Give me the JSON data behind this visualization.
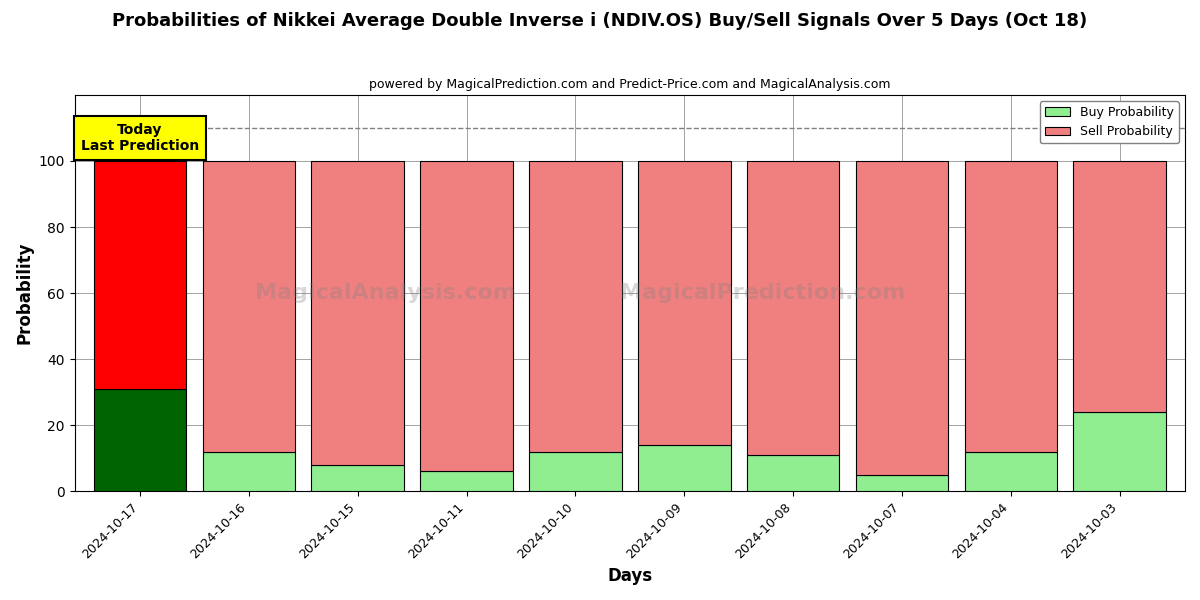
{
  "title": "Probabilities of Nikkei Average Double Inverse i (NDIV.OS) Buy/Sell Signals Over 5 Days (Oct 18)",
  "subtitle": "powered by MagicalPrediction.com and Predict-Price.com and MagicalAnalysis.com",
  "xlabel": "Days",
  "ylabel": "Probability",
  "dates": [
    "2024-10-17",
    "2024-10-16",
    "2024-10-15",
    "2024-10-11",
    "2024-10-10",
    "2024-10-09",
    "2024-10-08",
    "2024-10-07",
    "2024-10-04",
    "2024-10-03"
  ],
  "buy_values": [
    31,
    12,
    8,
    6,
    12,
    14,
    11,
    5,
    12,
    24
  ],
  "sell_values": [
    69,
    88,
    92,
    94,
    88,
    86,
    89,
    95,
    88,
    76
  ],
  "buy_colors": [
    "#006400",
    "#90EE90",
    "#90EE90",
    "#90EE90",
    "#90EE90",
    "#90EE90",
    "#90EE90",
    "#90EE90",
    "#90EE90",
    "#90EE90"
  ],
  "sell_colors": [
    "#FF0000",
    "#F08080",
    "#F08080",
    "#F08080",
    "#F08080",
    "#F08080",
    "#F08080",
    "#F08080",
    "#F08080",
    "#F08080"
  ],
  "today_label": "Today\nLast Prediction",
  "dashed_line_y": 110,
  "ylim": [
    0,
    120
  ],
  "yticks": [
    0,
    20,
    40,
    60,
    80,
    100
  ],
  "legend_buy_color": "#90EE90",
  "legend_sell_color": "#F08080",
  "bar_width": 0.85,
  "fig_width": 12.0,
  "fig_height": 6.0,
  "dpi": 100
}
